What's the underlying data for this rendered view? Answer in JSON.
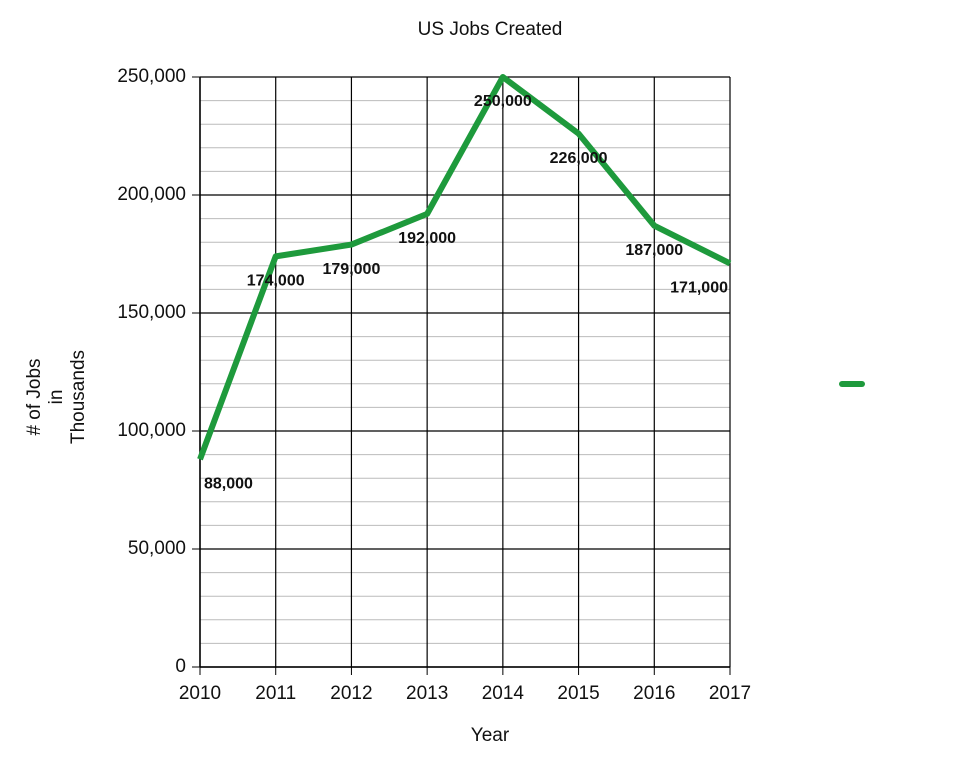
{
  "chart_data": {
    "type": "line",
    "title": "US Jobs Created",
    "x_label": "Year",
    "y_label": [
      "# of Jobs",
      "in",
      "Thousands"
    ],
    "x": [
      2010,
      2011,
      2012,
      2013,
      2014,
      2015,
      2016,
      2017
    ],
    "series": [
      {
        "color": "#1e9a3c",
        "values": [
          88000,
          174000,
          179000,
          192000,
          250000,
          226000,
          187000,
          171000
        ],
        "value_labels": [
          "88,000",
          "174,000",
          "179,000",
          "192,000",
          "250,000",
          "226,000",
          "187,000",
          "171,000"
        ]
      }
    ],
    "xlim": [
      2010,
      2017
    ],
    "xticks": [
      2010,
      2011,
      2012,
      2013,
      2014,
      2015,
      2016,
      2017
    ],
    "ylim": [
      0,
      250000
    ],
    "yticks": [
      0,
      {
        "value": 50000,
        "label": "50,000"
      },
      {
        "value": 100000,
        "label": "100,000"
      },
      {
        "value": 150000,
        "label": "150,000"
      },
      {
        "value": 200000,
        "label": "200,000"
      },
      {
        "value": 250000,
        "label": "250,000"
      }
    ],
    "minor_yticks": [
      10000,
      20000,
      30000,
      40000,
      60000,
      70000,
      80000,
      90000,
      110000,
      120000,
      130000,
      140000,
      160000,
      170000,
      180000,
      190000,
      210000,
      220000,
      230000,
      240000
    ],
    "grid": true,
    "legend": "right"
  }
}
